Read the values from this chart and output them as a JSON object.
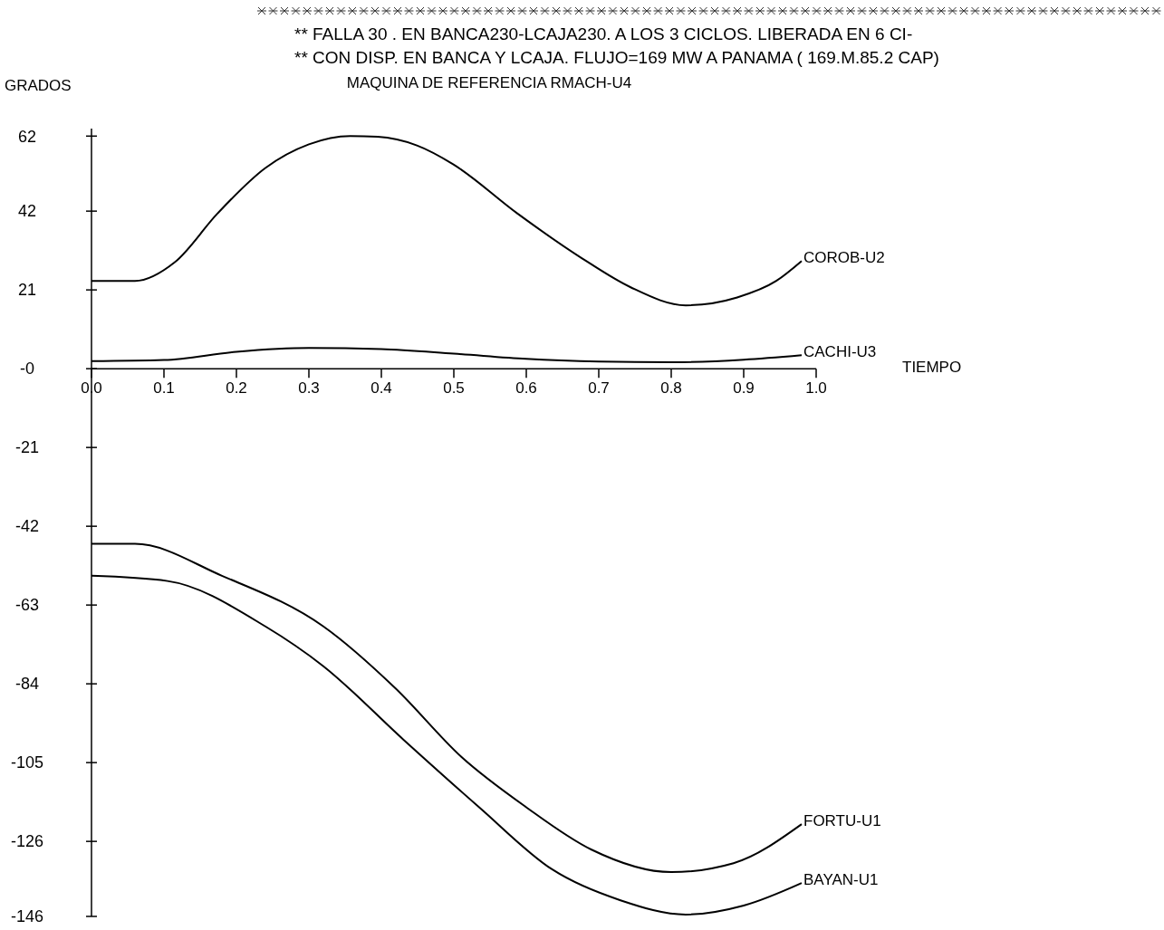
{
  "chart_data": {
    "type": "line",
    "title": "** FALLA 30 . EN BANCA230-LCAJA230. A LOS 3 CICLOS. LIBERADA EN 6 CI-",
    "subtitle": "** CON DISP. EN BANCA Y LCAJA. FLUJO=169 MW A PANAMA ( 169.M.85.2 CAP)",
    "annotations": [
      "MAQUINA DE REFERENCIA  RMACH-U4"
    ],
    "xlabel": "TIEMPO",
    "ylabel": "GRADOS",
    "xlim": [
      0,
      1
    ],
    "xticks": [
      {
        "value": 0,
        "label": "0.0"
      },
      0.1,
      0.2,
      0.3,
      0.4,
      0.5,
      0.6,
      0.7,
      0.8,
      0.9,
      {
        "value": 1,
        "label": "1.0"
      }
    ],
    "ylim": [
      -146,
      64
    ],
    "yticks": [
      62,
      42,
      21,
      {
        "value": 0,
        "label": "-0"
      },
      -21,
      -42,
      -63,
      -84,
      -105,
      -126,
      -146
    ],
    "grid": false,
    "marker": "none",
    "line_style": "solid",
    "series": [
      {
        "name": "COROB-U2",
        "color": "#000000",
        "x": [
          0,
          0.06,
          0.115,
          0.174,
          0.24,
          0.3,
          0.357,
          0.395,
          0.449,
          0.499,
          0.5875,
          0.677,
          0.744,
          0.82,
          0.891,
          0.945,
          0.98
        ],
        "values": [
          23.4,
          23.4,
          28.4,
          41.4,
          53.5,
          59.8,
          62,
          61.8,
          59.5,
          54.5,
          41.4,
          29.4,
          21.7,
          16.9,
          19,
          23.4,
          28.7
        ]
      },
      {
        "name": "CACHI-U3",
        "color": "#000000",
        "x": [
          0,
          0.1,
          0.2,
          0.3,
          0.4,
          0.5,
          0.6,
          0.7,
          0.8,
          0.9,
          0.98
        ],
        "values": [
          2,
          2.3,
          4.5,
          5.5,
          5.2,
          4,
          2.6,
          1.9,
          1.7,
          2.4,
          3.6
        ]
      },
      {
        "name": "FORTU-U1",
        "color": "#000000",
        "x": [
          0,
          0.06,
          0.18,
          0.32,
          0.42,
          0.51,
          0.6,
          0.69,
          0.8,
          0.886,
          0.98
        ],
        "values": [
          -46.7,
          -46.7,
          -55.2,
          -68.7,
          -85.3,
          -103.4,
          -116.9,
          -128.2,
          -134.2,
          -131.8,
          -121.4
        ]
      },
      {
        "name": "BAYAN-U1",
        "color": "#000000",
        "x": [
          0,
          0.105,
          0.24,
          0.32,
          0.43,
          0.535,
          0.636,
          0.73,
          0.82,
          0.9,
          0.98
        ],
        "values": [
          -55.2,
          -56.6,
          -68.7,
          -79.3,
          -98.8,
          -116.9,
          -133.5,
          -141.7,
          -145.5,
          -143.1,
          -137.1
        ]
      }
    ]
  }
}
